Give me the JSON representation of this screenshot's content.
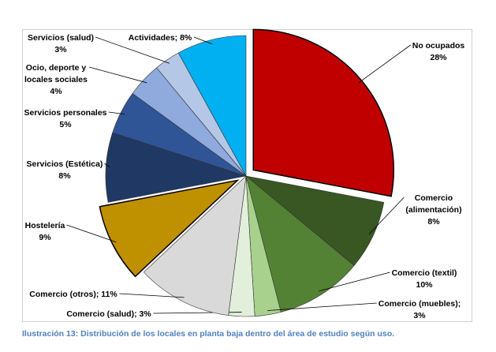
{
  "chart_data": {
    "type": "pie",
    "title": "",
    "start_angle_deg": 0,
    "direction": "clockwise",
    "slices": [
      {
        "name": "No ocupados",
        "value": 28,
        "label": [
          "No ocupados",
          "28%"
        ],
        "color": "#C00000",
        "exploded": true
      },
      {
        "name": "Comercio (alimentación)",
        "value": 8,
        "label": [
          "Comercio",
          "(alimentación)",
          "8%"
        ],
        "color": "#385723",
        "exploded": false
      },
      {
        "name": "Comercio (textil)",
        "value": 10,
        "label": [
          "Comercio (textil)",
          "10%"
        ],
        "color": "#548235",
        "exploded": false
      },
      {
        "name": "Comercio (muebles)",
        "value": 3,
        "label": [
          "Comercio (muebles);",
          "3%"
        ],
        "color": "#A9D18E",
        "exploded": false
      },
      {
        "name": "Comercio (salud)",
        "value": 3,
        "label": [
          "Comercio (salud); 3%"
        ],
        "color": "#E2EFDA",
        "exploded": false
      },
      {
        "name": "Comercio (otros)",
        "value": 11,
        "label": [
          "Comercio (otros); 11%"
        ],
        "color": "#D9D9D9",
        "exploded": false
      },
      {
        "name": "Hostelería",
        "value": 9,
        "label": [
          "Hostelería",
          "9%"
        ],
        "color": "#BF9000",
        "exploded": true
      },
      {
        "name": "Servicios (Estética)",
        "value": 8,
        "label": [
          "Servicios (Estética)",
          "8%"
        ],
        "color": "#203864",
        "exploded": false
      },
      {
        "name": "Servicios personales",
        "value": 5,
        "label": [
          "Servicios personales",
          "5%"
        ],
        "color": "#2F5597",
        "exploded": false
      },
      {
        "name": "Ocio, deporte y locales sociales",
        "value": 4,
        "label": [
          "Ocio, deporte y",
          "locales sociales",
          "4%"
        ],
        "color": "#8FAADC",
        "exploded": false
      },
      {
        "name": "Servicios (salud)",
        "value": 3,
        "label": [
          "Servicios (salud)",
          "3%"
        ],
        "color": "#B4C7E7",
        "exploded": false
      },
      {
        "name": "Actividades",
        "value": 8,
        "label": [
          "Actividades; 8%"
        ],
        "color": "#00B0F0",
        "exploded": false
      }
    ]
  },
  "caption": "Ilustración 13: Distribución de los locales en planta baja dentro del área de estudio según uso."
}
